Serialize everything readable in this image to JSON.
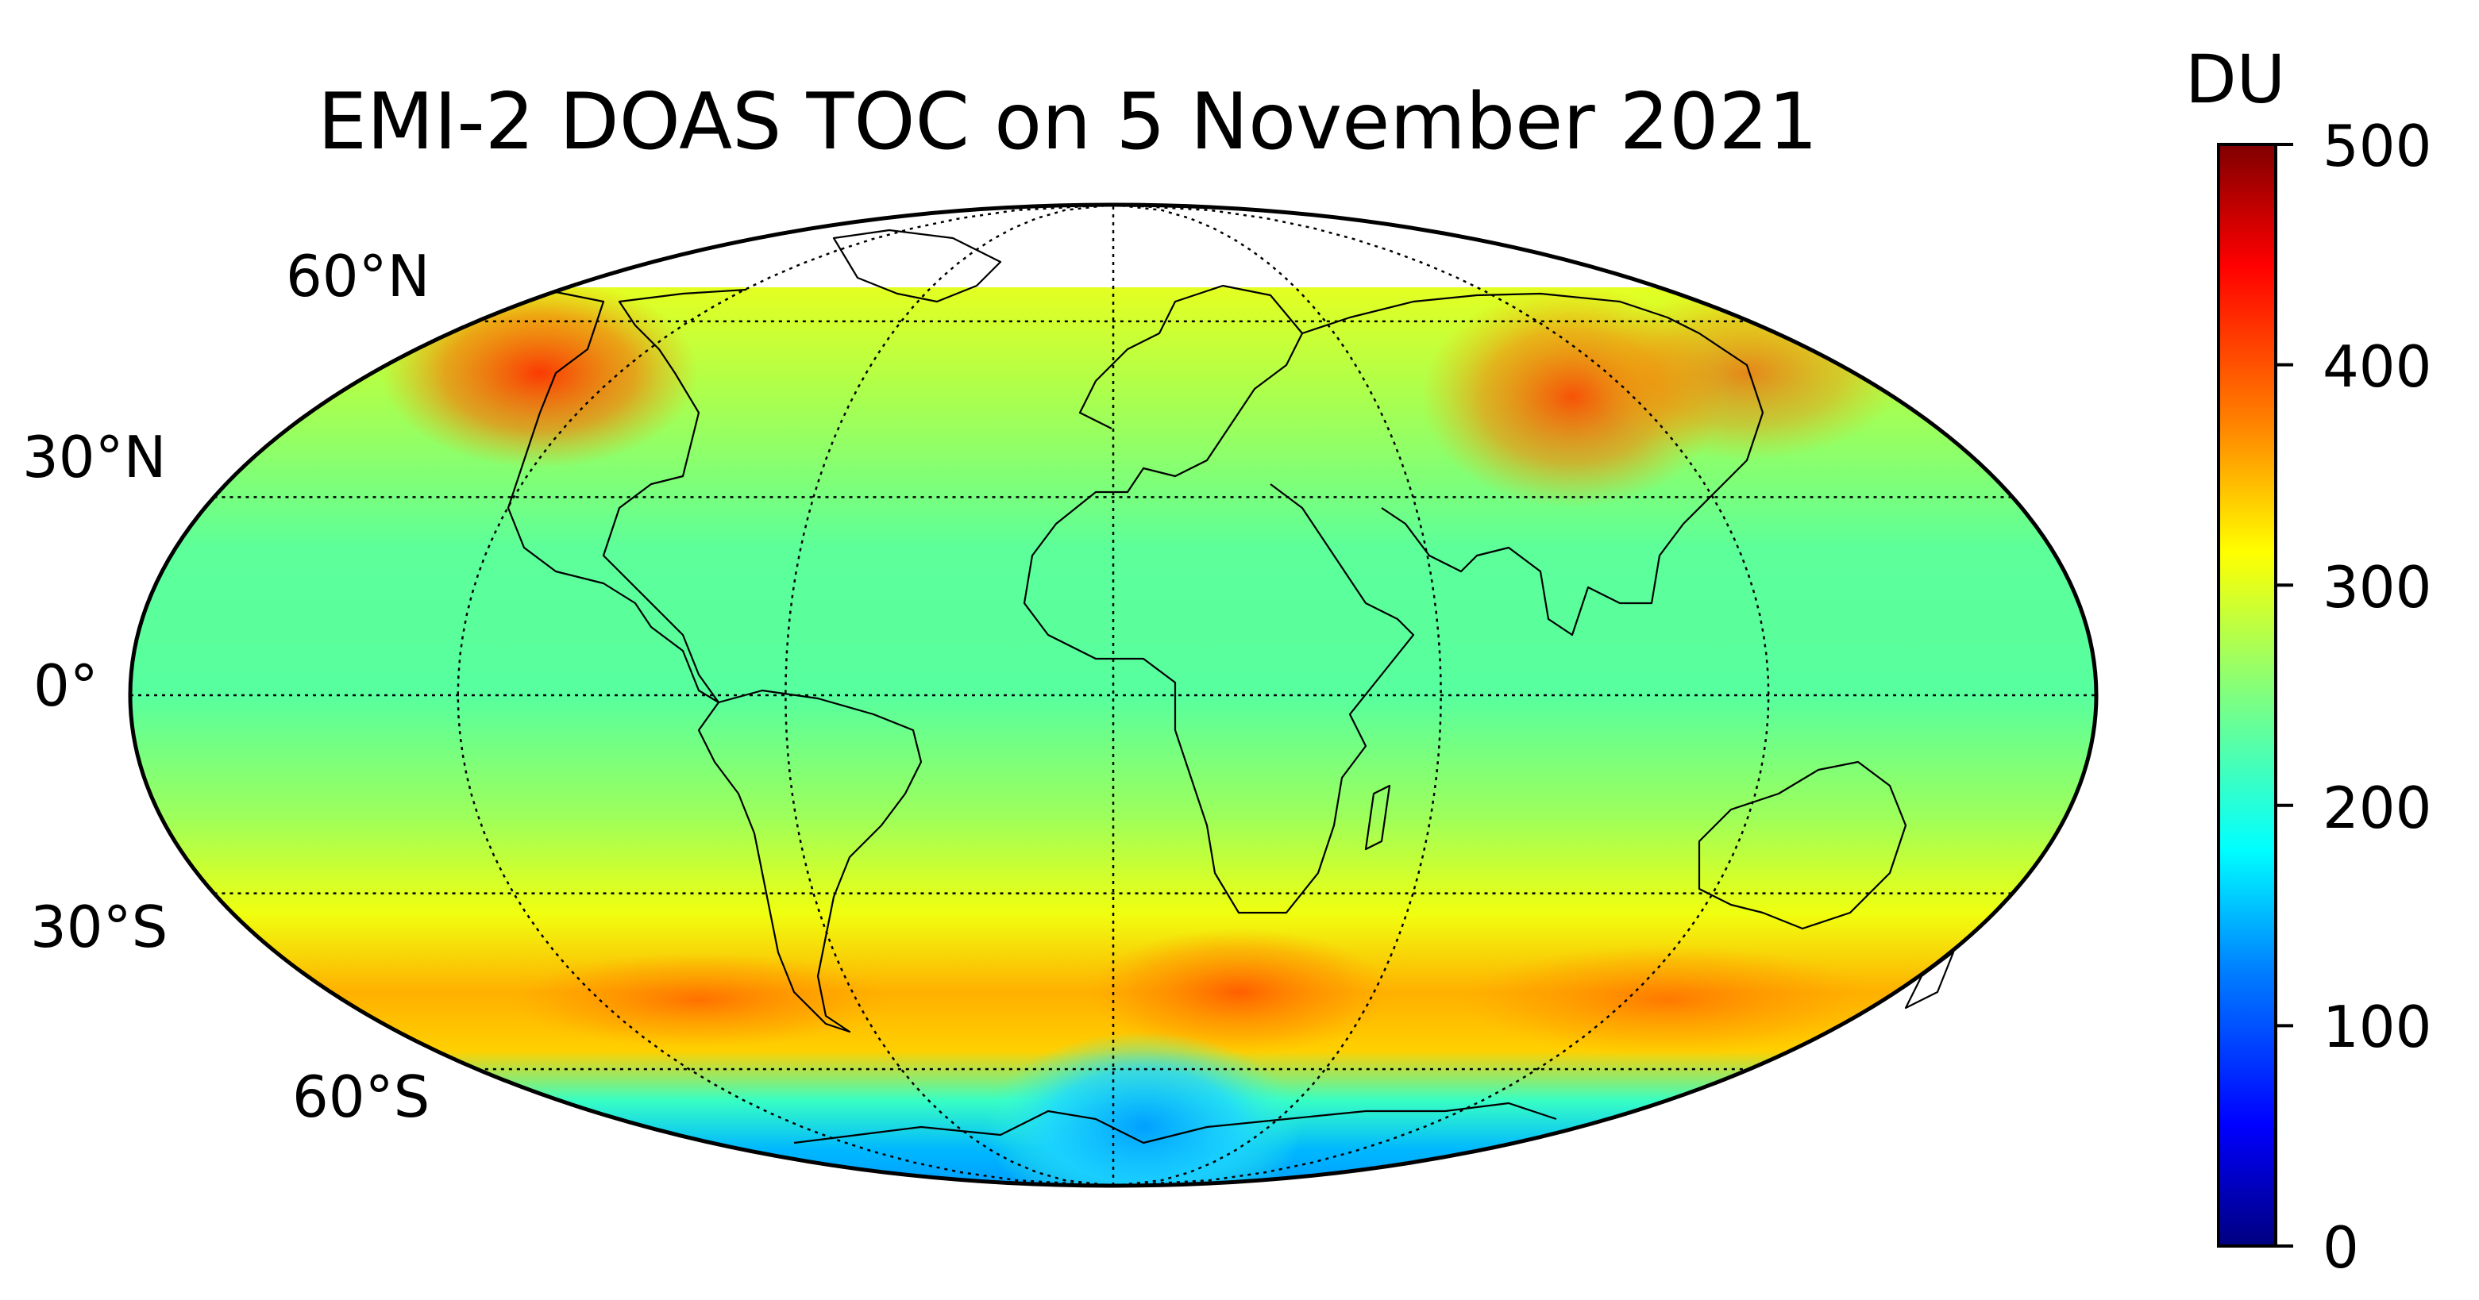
{
  "map": {
    "title": "EMI-2 DOAS TOC on 5 November 2021",
    "projection": "mollweide",
    "latitude_labels": [
      "60°N",
      "30°N",
      "0°",
      "30°S",
      "60°S"
    ],
    "latitude_values": [
      60,
      30,
      0,
      -30,
      -60
    ],
    "meridians_every_deg": 60,
    "colormap": "jet",
    "colormap_stops": [
      "#00007f",
      "#0000ff",
      "#007fff",
      "#00ffff",
      "#7fff7f",
      "#ffff00",
      "#ff7f00",
      "#ff0000",
      "#7f0000"
    ],
    "colorbar": {
      "unit": "DU",
      "min": 0,
      "max": 500,
      "ticks": [
        "500",
        "400",
        "300",
        "200",
        "100",
        "0"
      ],
      "tick_values": [
        500,
        400,
        300,
        200,
        100,
        0
      ]
    },
    "field_summary": {
      "tropics_du": 250,
      "northern_midlatitudes_du": 300,
      "southern_midlatitudes_du": 340,
      "north_atlantic_maximum_du": 420,
      "east_asia_maximum_du": 410,
      "southern_ocean_maximum_du": 390,
      "antarctic_minimum_du": 150,
      "no_data_above_lat": 62
    }
  }
}
